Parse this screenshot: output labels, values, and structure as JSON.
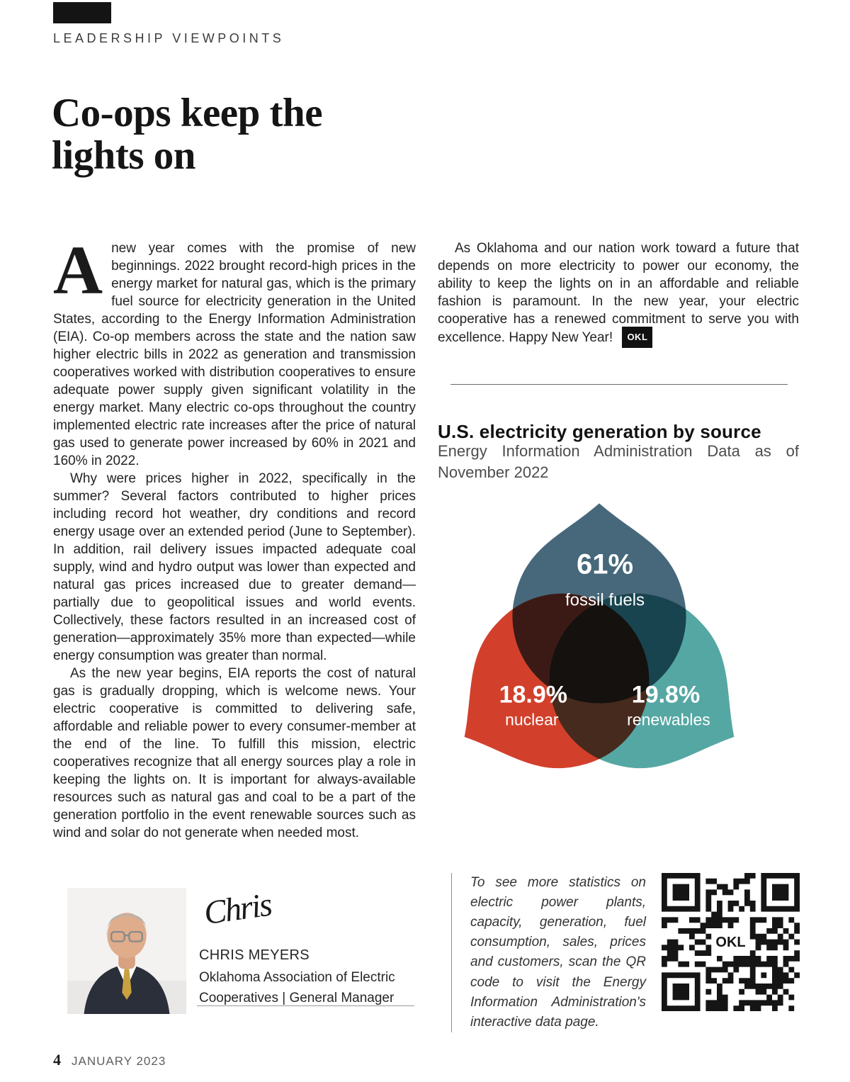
{
  "page": {
    "kicker": "LEADERSHIP VIEWPOINTS",
    "headline_line1": "Co-ops keep the",
    "headline_line2": "lights on",
    "footer_page_number": "4",
    "footer_issue": "JANUARY 2023"
  },
  "article": {
    "dropcap": "A",
    "p1": "new year comes with the promise of new beginnings. 2022 brought record-high prices in the energy market for natural gas, which is the primary fuel source for electricity generation in the United States, according to the Energy Information Administration (EIA). Co-op members across the state and the nation saw higher electric bills in 2022 as generation and transmission cooperatives worked with distribution cooperatives to ensure adequate power supply given significant volatility in the energy market. Many electric co-ops throughout the country implemented electric rate increases after the price of natural gas used to generate power increased by 60% in 2021 and 160% in 2022.",
    "p2": "Why were prices higher in 2022, specifically in the summer? Several factors contributed to higher prices including record hot weather, dry conditions and record energy usage over an extended period (June to September). In addition, rail delivery issues impacted adequate coal supply, wind and hydro output was lower than expected and natural gas prices increased due to greater demand—partially due to geopolitical issues and world events. Collectively, these factors resulted in an increased cost of generation—approximately 35% more than expected—while energy consumption was greater than normal.",
    "p3": "As the new year begins, EIA reports the cost of natural gas is gradually dropping, which is welcome news. Your electric cooperative is committed to delivering safe, affordable and reliable power to every consumer-member at the end of the line. To fulfill this mission, electric cooperatives recognize that all energy sources play a role in keeping the lights on. It is important for always-available resources such as natural gas and coal to be a part of the generation portfolio in the event renewable sources such as wind and solar do not generate when needed most.",
    "p4": "As Oklahoma and our nation work toward a future that depends on more electricity to power our economy, the ability to keep the lights on in an affordable and reliable fashion is paramount. In the new year, your electric cooperative has a renewed commitment to serve you with excellence. Happy New Year!",
    "end_badge": "OKL"
  },
  "chart_data": {
    "type": "venn",
    "title": "U.S. electricity generation by source",
    "subtitle": "Energy Information Administration Data as of November 2022",
    "segments": [
      {
        "label": "fossil fuels",
        "value": "61%",
        "color": "#47687B"
      },
      {
        "label": "nuclear",
        "value": "18.9%",
        "color": "#D2402C"
      },
      {
        "label": "renewables",
        "value": "19.8%",
        "color": "#55A7A3"
      }
    ]
  },
  "author": {
    "signature": "Chris",
    "name": "CHRIS MEYERS",
    "org_line1": "Oklahoma Association of Electric",
    "org_line2": "Cooperatives | General Manager"
  },
  "qr": {
    "note": "To see more statistics on electric power plants, capacity, generation, fuel consumption, sales, prices and customers, scan the QR code to visit the Energy Information Administration's interactive data page.",
    "center_label": "OKL"
  }
}
